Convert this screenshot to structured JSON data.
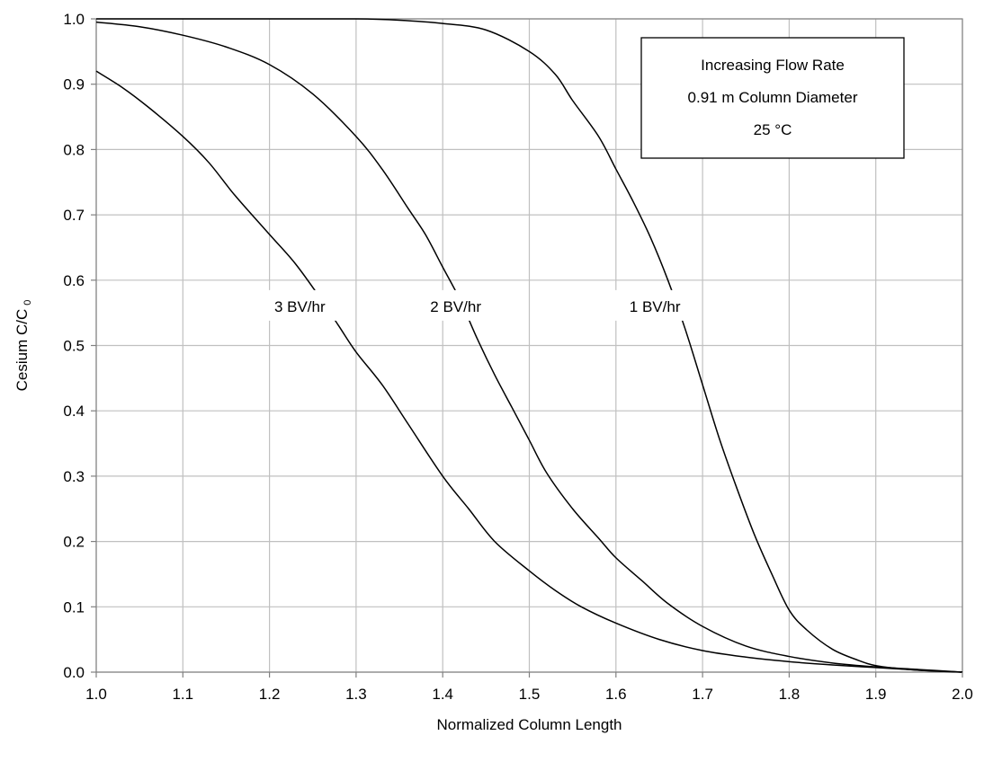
{
  "chart_data": {
    "type": "line",
    "title": "",
    "xlabel": "Normalized Column Length",
    "ylabel": "Cesium C/C",
    "ylabel_subscript": "0",
    "xlim": [
      1.0,
      2.0
    ],
    "ylim": [
      0.0,
      1.0
    ],
    "x_ticks": [
      "1.0",
      "1.1",
      "1.2",
      "1.3",
      "1.4",
      "1.5",
      "1.6",
      "1.7",
      "1.8",
      "1.9",
      "2.0"
    ],
    "y_ticks": [
      "0.0",
      "0.1",
      "0.2",
      "0.3",
      "0.4",
      "0.5",
      "0.6",
      "0.7",
      "0.8",
      "0.9",
      "1.0"
    ],
    "grid": true,
    "annotation_box": {
      "lines": [
        "Increasing Flow Rate",
        "0.91 m Column Diameter",
        "25 °C"
      ],
      "placement": "top-right"
    },
    "series": [
      {
        "name": "1 BV/hr",
        "x": [
          1.0,
          1.1,
          1.2,
          1.3,
          1.35,
          1.4,
          1.45,
          1.5,
          1.53,
          1.55,
          1.58,
          1.6,
          1.62,
          1.64,
          1.66,
          1.68,
          1.7,
          1.72,
          1.74,
          1.76,
          1.78,
          1.8,
          1.82,
          1.85,
          1.88,
          1.9,
          1.93,
          1.96,
          2.0
        ],
        "y": [
          1.0,
          1.0,
          1.0,
          1.0,
          0.998,
          0.993,
          0.983,
          0.95,
          0.915,
          0.875,
          0.82,
          0.77,
          0.72,
          0.665,
          0.6,
          0.525,
          0.44,
          0.355,
          0.28,
          0.21,
          0.15,
          0.095,
          0.065,
          0.035,
          0.018,
          0.01,
          0.005,
          0.002,
          0.0
        ]
      },
      {
        "name": "2 BV/hr",
        "x": [
          1.0,
          1.05,
          1.1,
          1.15,
          1.2,
          1.25,
          1.3,
          1.33,
          1.36,
          1.38,
          1.4,
          1.42,
          1.44,
          1.46,
          1.48,
          1.5,
          1.52,
          1.55,
          1.58,
          1.6,
          1.63,
          1.66,
          1.7,
          1.75,
          1.8,
          1.85,
          1.9,
          1.95,
          2.0
        ],
        "y": [
          0.995,
          0.988,
          0.975,
          0.957,
          0.93,
          0.885,
          0.82,
          0.77,
          0.71,
          0.67,
          0.62,
          0.57,
          0.51,
          0.455,
          0.405,
          0.355,
          0.305,
          0.25,
          0.205,
          0.175,
          0.14,
          0.105,
          0.07,
          0.04,
          0.024,
          0.014,
          0.008,
          0.004,
          0.0
        ]
      },
      {
        "name": "3 BV/hr",
        "x": [
          1.0,
          1.03,
          1.06,
          1.1,
          1.13,
          1.16,
          1.2,
          1.23,
          1.26,
          1.28,
          1.3,
          1.33,
          1.36,
          1.4,
          1.43,
          1.46,
          1.5,
          1.53,
          1.56,
          1.6,
          1.65,
          1.7,
          1.75,
          1.8,
          1.85,
          1.9,
          1.95,
          2.0
        ],
        "y": [
          0.92,
          0.895,
          0.865,
          0.82,
          0.78,
          0.73,
          0.67,
          0.625,
          0.57,
          0.53,
          0.49,
          0.44,
          0.38,
          0.3,
          0.25,
          0.2,
          0.155,
          0.125,
          0.1,
          0.075,
          0.05,
          0.033,
          0.023,
          0.016,
          0.011,
          0.007,
          0.003,
          0.0
        ]
      }
    ],
    "series_label_positions": [
      {
        "series": "1 BV/hr",
        "label_x": 1.645,
        "label_y": 0.56
      },
      {
        "series": "2 BV/hr",
        "label_x": 1.415,
        "label_y": 0.56
      },
      {
        "series": "3 BV/hr",
        "label_x": 1.235,
        "label_y": 0.56
      }
    ]
  }
}
